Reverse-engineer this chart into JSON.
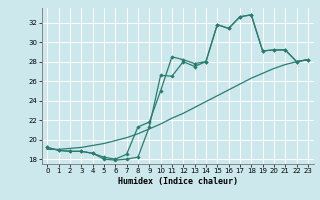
{
  "bg_color": "#cce8ec",
  "grid_color": "#ffffff",
  "line_color": "#2a7d6e",
  "xlabel": "Humidex (Indice chaleur)",
  "xlim": [
    -0.5,
    23.5
  ],
  "ylim": [
    17.5,
    33.5
  ],
  "xticks": [
    0,
    1,
    2,
    3,
    4,
    5,
    6,
    7,
    8,
    9,
    10,
    11,
    12,
    13,
    14,
    15,
    16,
    17,
    18,
    19,
    20,
    21,
    22,
    23
  ],
  "yticks": [
    18,
    20,
    22,
    24,
    26,
    28,
    30,
    32
  ],
  "line1_x": [
    0,
    1,
    2,
    3,
    4,
    5,
    6,
    7,
    8,
    9,
    10,
    11,
    12,
    13,
    14,
    15,
    16,
    17,
    18,
    19,
    20,
    21,
    22,
    23
  ],
  "line1_y": [
    19.0,
    19.0,
    19.1,
    19.2,
    19.4,
    19.6,
    19.9,
    20.2,
    20.6,
    21.1,
    21.6,
    22.2,
    22.7,
    23.3,
    23.9,
    24.5,
    25.1,
    25.7,
    26.3,
    26.8,
    27.3,
    27.7,
    28.0,
    28.2
  ],
  "line2_x": [
    0,
    1,
    2,
    3,
    4,
    5,
    6,
    7,
    8,
    9,
    10,
    11,
    12,
    13,
    14,
    15,
    16,
    17,
    18,
    19,
    20,
    21,
    22,
    23
  ],
  "line2_y": [
    19.2,
    18.9,
    18.8,
    18.8,
    18.6,
    18.2,
    18.0,
    18.5,
    21.3,
    21.8,
    25.0,
    28.5,
    28.2,
    27.8,
    28.0,
    31.8,
    31.4,
    32.6,
    32.8,
    29.1,
    29.2,
    29.2,
    28.0,
    28.2
  ],
  "line3_x": [
    0,
    1,
    2,
    3,
    4,
    5,
    6,
    7,
    8,
    9,
    10,
    11,
    12,
    13,
    14,
    15,
    16,
    17,
    18,
    19,
    20,
    21,
    22,
    23
  ],
  "line3_y": [
    19.2,
    18.9,
    18.8,
    18.8,
    18.6,
    18.0,
    17.9,
    18.0,
    18.2,
    21.3,
    26.6,
    26.5,
    28.0,
    27.5,
    28.0,
    31.8,
    31.4,
    32.6,
    32.8,
    29.1,
    29.2,
    29.2,
    28.0,
    28.2
  ]
}
